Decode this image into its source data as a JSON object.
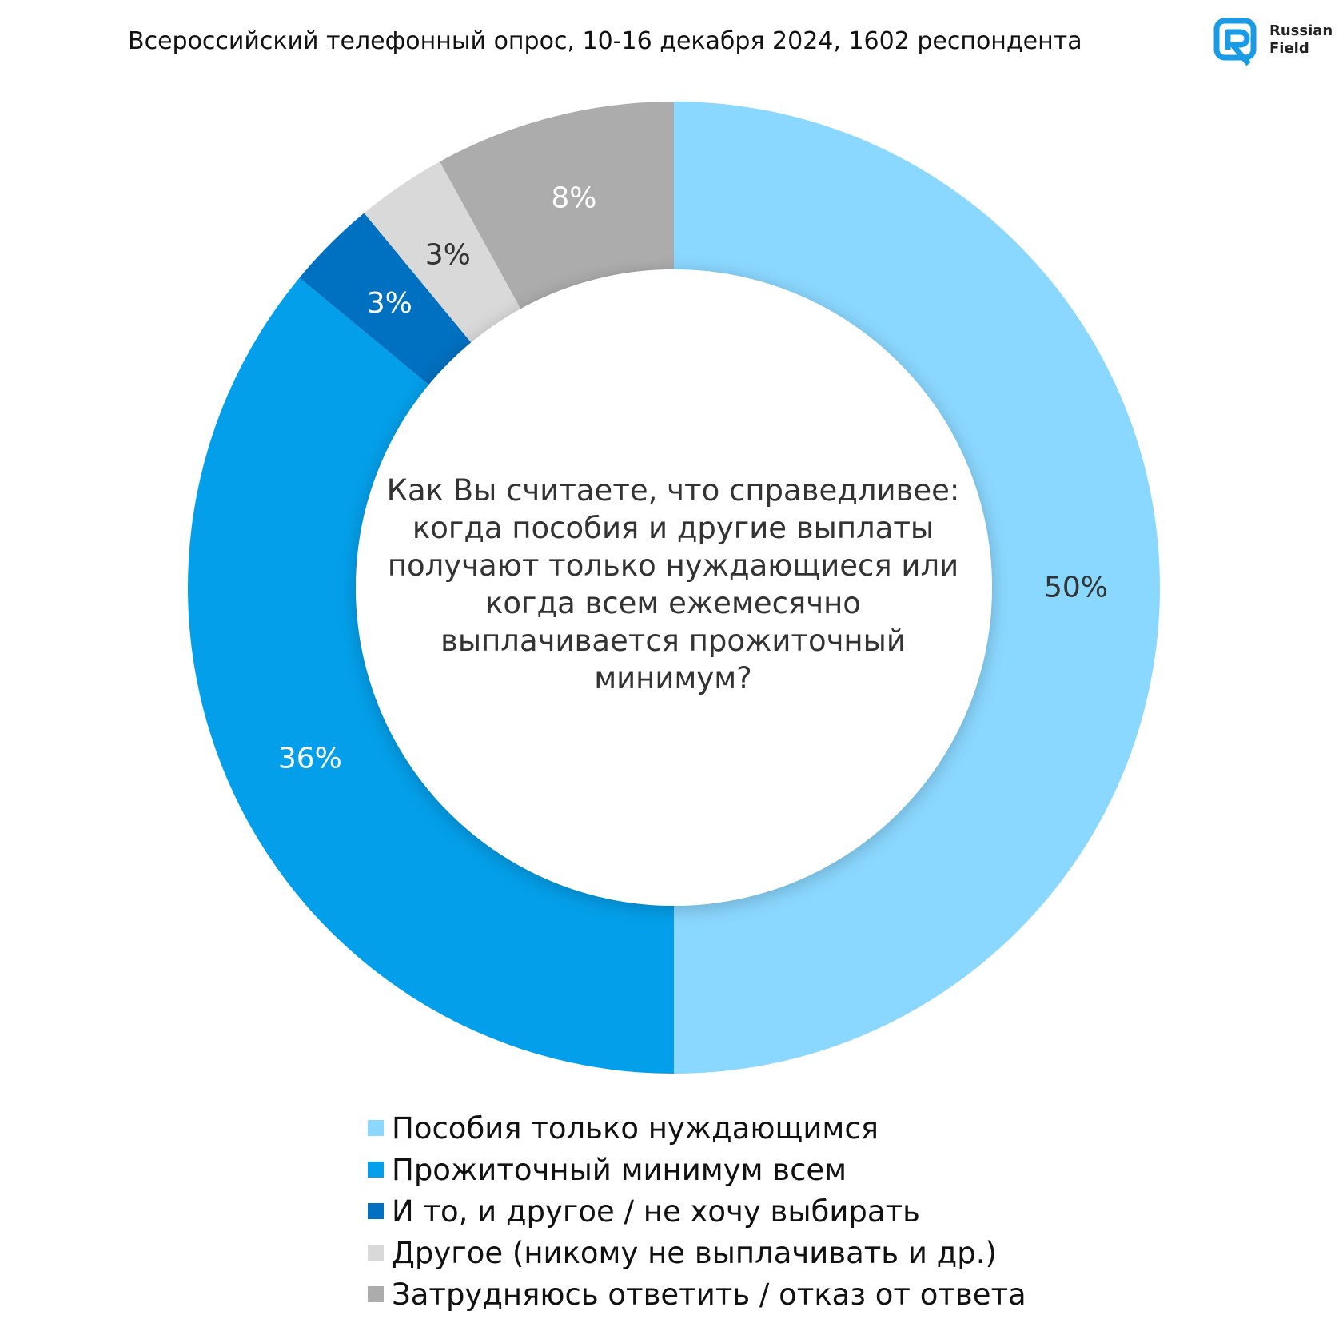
{
  "header": {
    "subtitle": "Всероссийский телефонный опрос, 10-16 декабря 2024, 1602 респондента"
  },
  "logo": {
    "line1": "Russian",
    "line2": "Field",
    "color": "#1a9be6"
  },
  "chart_data": {
    "type": "pie",
    "variant": "donut",
    "center_text": "Как Вы считаете, что справедливее: когда пособия и другие выплаты получают только нуждающиеся или когда всем ежемесячно выплачивается прожиточный минимум?",
    "unit": "%",
    "legend_position": "bottom",
    "series": [
      {
        "name": "Пособия только нуждающимся",
        "value": 50,
        "label": "50%",
        "color": "#8ad7ff",
        "label_color": "#333333"
      },
      {
        "name": "Прожиточный минимум всем",
        "value": 36,
        "label": "36%",
        "color": "#039fea",
        "label_color": "#ffffff"
      },
      {
        "name": "И то, и другое / не хочу выбирать",
        "value": 3,
        "label": "3%",
        "color": "#0070c0",
        "label_color": "#ffffff"
      },
      {
        "name": "Другое (никому не выплачивать и др.)",
        "value": 3,
        "label": "3%",
        "color": "#d9d9d9",
        "label_color": "#333333"
      },
      {
        "name": "Затрудняюсь ответить / отказ от ответа",
        "value": 8,
        "label": "8%",
        "color": "#acacac",
        "label_color": "#ffffff"
      }
    ]
  }
}
